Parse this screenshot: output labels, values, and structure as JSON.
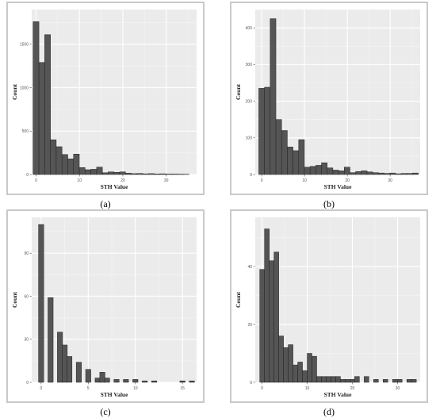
{
  "chart_data": [
    {
      "type": "bar",
      "panel": "a",
      "caption": "(a)",
      "xlabel": "STH Value",
      "ylabel": "Count",
      "x_ticks": [
        0,
        10,
        20,
        30
      ],
      "y_ticks": [
        0,
        500,
        1000,
        1500
      ],
      "xlim": [
        -1,
        37
      ],
      "ylim": [
        0,
        1900
      ],
      "bin_width": 1.33,
      "bin_start": -0.67,
      "values": [
        1760,
        1290,
        1610,
        400,
        320,
        230,
        180,
        235,
        80,
        55,
        60,
        85,
        20,
        30,
        25,
        30,
        15,
        10,
        12,
        8,
        10,
        6,
        8,
        5,
        5,
        4,
        3
      ]
    },
    {
      "type": "bar",
      "panel": "b",
      "caption": "(b)",
      "xlabel": "STH Value",
      "ylabel": "Count",
      "x_ticks": [
        0,
        10,
        20,
        30
      ],
      "y_ticks": [
        0,
        100,
        200,
        300,
        400
      ],
      "xlim": [
        -1.5,
        37
      ],
      "ylim": [
        0,
        450
      ],
      "bin_width": 1.33,
      "bin_start": -0.67,
      "values": [
        235,
        238,
        425,
        150,
        120,
        75,
        65,
        95,
        20,
        22,
        25,
        32,
        18,
        12,
        10,
        20,
        5,
        8,
        10,
        7,
        5,
        4,
        3,
        4,
        2,
        3,
        3,
        4
      ]
    },
    {
      "type": "bar",
      "panel": "c",
      "caption": "(c)",
      "xlabel": "STH Value",
      "ylabel": "Count",
      "x_ticks": [
        0,
        5,
        10,
        15
      ],
      "y_ticks": [
        0,
        30,
        60,
        90
      ],
      "xlim": [
        -1,
        16.5
      ],
      "ylim": [
        0,
        115
      ],
      "bin_width": 0.55,
      "bin_start": -0.27,
      "bins": [
        0,
        1,
        2,
        2.5,
        3,
        4,
        5,
        6,
        6.5,
        7,
        8,
        9,
        10,
        11,
        12,
        15,
        16
      ],
      "values": [
        110,
        59,
        35,
        26,
        18,
        14,
        9,
        3,
        7,
        3,
        2,
        2,
        2,
        1,
        1,
        1,
        1
      ]
    },
    {
      "type": "bar",
      "panel": "d",
      "caption": "(d)",
      "xlabel": "STH Value",
      "ylabel": "Count",
      "x_ticks": [
        0,
        10,
        20,
        30
      ],
      "y_ticks": [
        0,
        20,
        40
      ],
      "xlim": [
        -1.5,
        35
      ],
      "ylim": [
        0,
        57
      ],
      "bin_width": 1.05,
      "bin_start": -0.5,
      "values": [
        39,
        53,
        42,
        45,
        16,
        12,
        13,
        6,
        7,
        4,
        10,
        9,
        2,
        2,
        2,
        2,
        2,
        1,
        1,
        1,
        2,
        0,
        2,
        0,
        1,
        0,
        1,
        0,
        1,
        1,
        0,
        1,
        1
      ]
    }
  ]
}
